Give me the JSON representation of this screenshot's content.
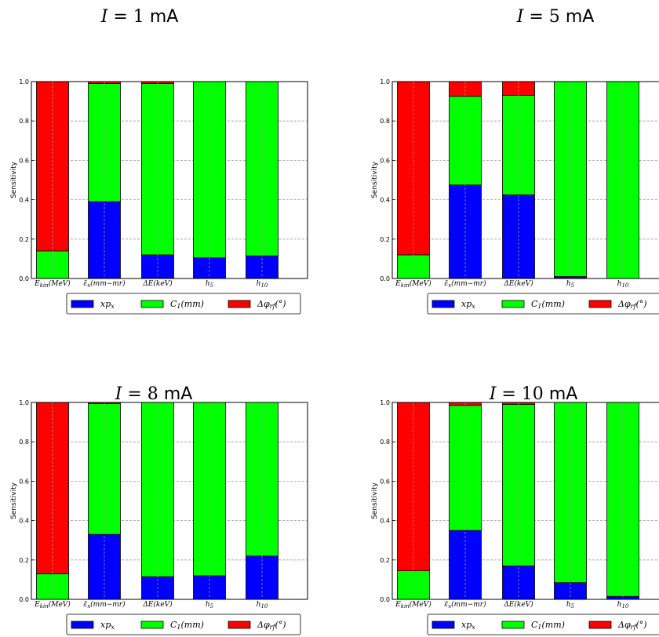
{
  "colors": {
    "series": [
      "#0000ff",
      "#00ff00",
      "#ff0000"
    ],
    "grid": "#999999",
    "axis": "#000000"
  },
  "chart_data": [
    {
      "type": "bar",
      "title": "I = 1 mA",
      "title_parts": {
        "var": "I",
        "num": "= 1",
        "unit": "mA"
      },
      "ylabel": "Sensitivity",
      "ylim": [
        0,
        1.0
      ],
      "yticks": [
        "0.0",
        "0.2",
        "0.4",
        "0.6",
        "0.8",
        "1.0"
      ],
      "grid": true,
      "legend": "bottom",
      "stacked": true,
      "categories": [
        "Ekin(MeV)",
        "ε̄x(mm−mr)",
        "ΔE(keV)",
        "h5",
        "h10"
      ],
      "series": [
        {
          "name": "xpx",
          "values": [
            0.0,
            0.39,
            0.12,
            0.105,
            0.115
          ]
        },
        {
          "name": "C1(mm)",
          "values": [
            0.14,
            0.6,
            0.87,
            0.895,
            0.885
          ]
        },
        {
          "name": "Δφrf(°)",
          "values": [
            0.86,
            0.01,
            0.01,
            0.0,
            0.0
          ]
        }
      ]
    },
    {
      "type": "bar",
      "title": "I = 5 mA",
      "title_parts": {
        "var": "I",
        "num": "= 5",
        "unit": "mA"
      },
      "ylabel": "Sensitivity",
      "ylim": [
        0,
        1.0
      ],
      "yticks": [
        "0.0",
        "0.2",
        "0.4",
        "0.6",
        "0.8",
        "1.0"
      ],
      "grid": true,
      "legend": "bottom",
      "stacked": true,
      "categories": [
        "Ekin(MeV)",
        "ε̄x(mm−mr)",
        "ΔE(keV)",
        "h5",
        "h10"
      ],
      "series": [
        {
          "name": "xpx",
          "values": [
            0.0,
            0.475,
            0.425,
            0.01,
            0.0
          ]
        },
        {
          "name": "C1(mm)",
          "values": [
            0.12,
            0.45,
            0.505,
            0.99,
            1.0
          ]
        },
        {
          "name": "Δφrf(°)",
          "values": [
            0.88,
            0.075,
            0.07,
            0.0,
            0.0
          ]
        }
      ]
    },
    {
      "type": "bar",
      "title": "I = 8 mA",
      "title_parts": {
        "var": "I",
        "num": "= 8",
        "unit": "mA"
      },
      "ylabel": "Sensitivity",
      "ylim": [
        0,
        1.0
      ],
      "yticks": [
        "0.0",
        "0.2",
        "0.4",
        "0.6",
        "0.8",
        "1.0"
      ],
      "grid": true,
      "legend": "bottom",
      "stacked": true,
      "categories": [
        "Ekin(MeV)",
        "ε̄x(mm−mr)",
        "ΔE(keV)",
        "h5",
        "h10"
      ],
      "series": [
        {
          "name": "xpx",
          "values": [
            0.0,
            0.33,
            0.115,
            0.12,
            0.22
          ]
        },
        {
          "name": "C1(mm)",
          "values": [
            0.13,
            0.665,
            0.885,
            0.88,
            0.78
          ]
        },
        {
          "name": "Δφrf(°)",
          "values": [
            0.87,
            0.005,
            0.0,
            0.0,
            0.0
          ]
        }
      ]
    },
    {
      "type": "bar",
      "title": "I = 10 mA",
      "title_parts": {
        "var": "I",
        "num": "= 10",
        "unit": "mA"
      },
      "ylabel": "Sensitivity",
      "ylim": [
        0,
        1.0
      ],
      "yticks": [
        "0.0",
        "0.2",
        "0.4",
        "0.6",
        "0.8",
        "1.0"
      ],
      "grid": true,
      "legend": "bottom",
      "stacked": true,
      "categories": [
        "Ekin(MeV)",
        "ε̄x(mm−mr)",
        "ΔE(keV)",
        "h5",
        "h10"
      ],
      "series": [
        {
          "name": "xpx",
          "values": [
            0.0,
            0.35,
            0.17,
            0.085,
            0.015
          ]
        },
        {
          "name": "C1(mm)",
          "values": [
            0.145,
            0.635,
            0.82,
            0.915,
            0.985
          ]
        },
        {
          "name": "Δφrf(°)",
          "values": [
            0.855,
            0.015,
            0.01,
            0.0,
            0.0
          ]
        }
      ]
    }
  ]
}
